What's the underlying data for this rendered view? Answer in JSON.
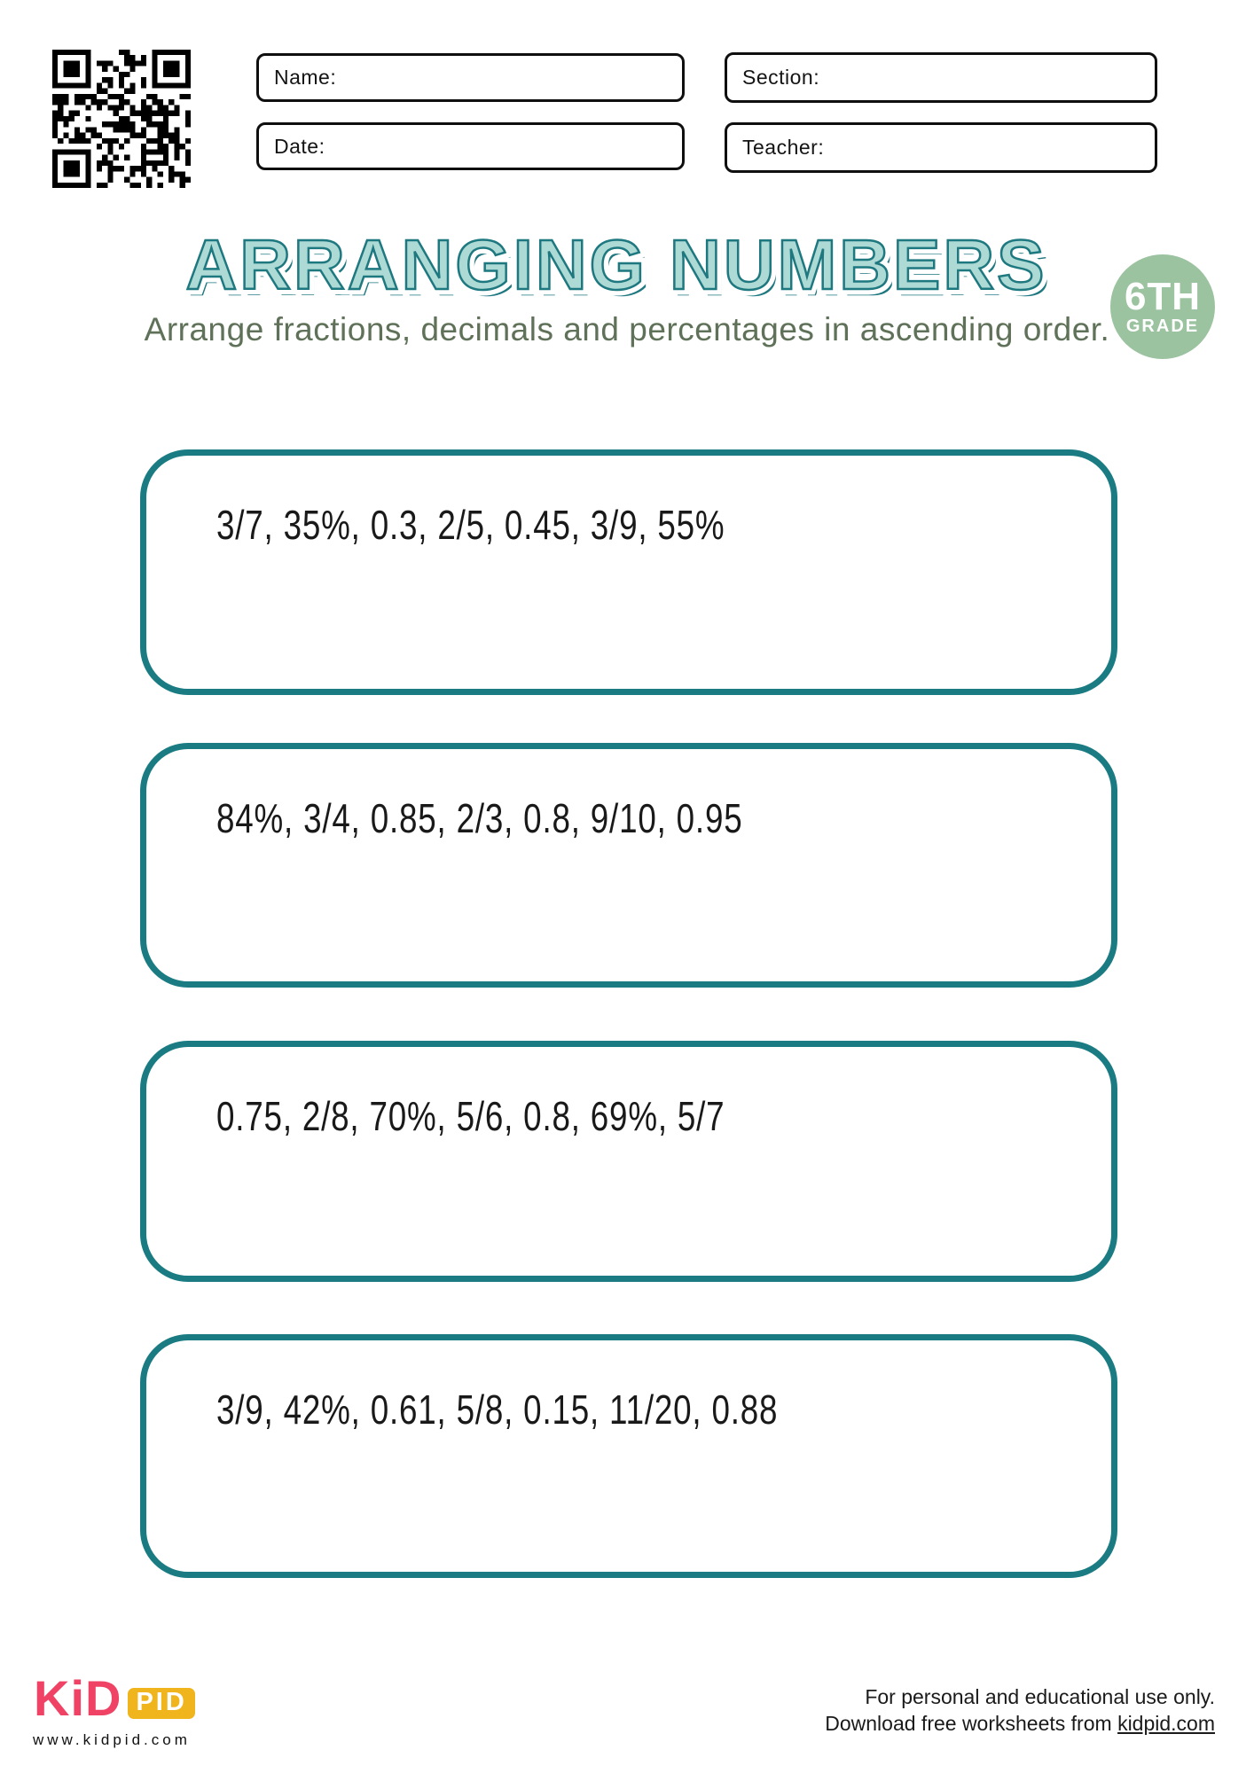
{
  "header": {
    "fields": [
      {
        "id": "name",
        "label": "Name:"
      },
      {
        "id": "section",
        "label": "Section:"
      },
      {
        "id": "date",
        "label": "Date:"
      },
      {
        "id": "teacher",
        "label": "Teacher:"
      }
    ]
  },
  "title": "ARRANGING NUMBERS",
  "subtitle": "Arrange fractions, decimals and percentages in ascending order.",
  "badge": {
    "line1": "6TH",
    "line2": "GRADE"
  },
  "problems": [
    "3/7, 35%, 0.3, 2/5, 0.45, 3/9, 55%",
    "84%, 3/4, 0.85, 2/3, 0.8, 9/10, 0.95",
    "0.75, 2/8, 70%, 5/6, 0.8, 69%, 5/7",
    "3/9, 42%, 0.61, 5/8, 0.15, 11/20, 0.88"
  ],
  "footer": {
    "logo_part1": "KiD",
    "logo_part2": "PID",
    "website": "www.kidpid.com",
    "note_line1": "For personal and educational use only.",
    "note_line2_prefix": "Download free worksheets from ",
    "note_link": "kidpid.com"
  },
  "colors": {
    "box_border_teal": "#1a7c82",
    "title_fill": "#aedad5",
    "title_outline": "#1e7880",
    "subtitle_green": "#5f7158",
    "badge_green": "#9cc3a0",
    "logo_pink": "#f04264",
    "logo_yellow": "#f0b41c",
    "ink_black": "#141414"
  }
}
